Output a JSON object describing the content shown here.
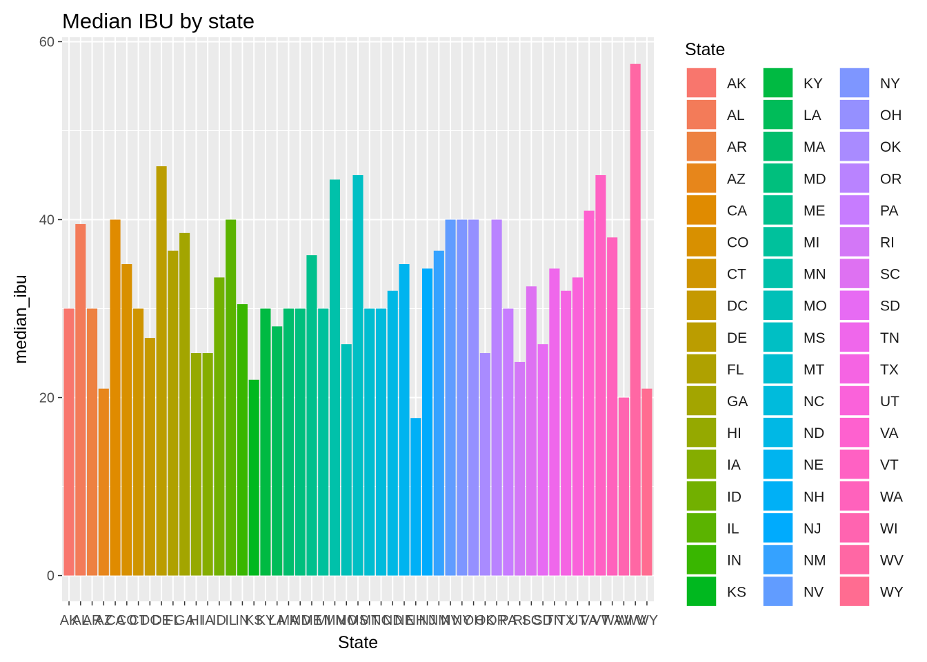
{
  "chart_data": {
    "type": "bar",
    "title": "Median IBU by state",
    "xlabel": "State",
    "ylabel": "median_ibu",
    "ylim": [
      -2.9,
      60.5
    ],
    "yticks": [
      0,
      20,
      40,
      60
    ],
    "legend": {
      "title": "State",
      "placement": "right",
      "columns": 3
    },
    "categories": [
      "AK",
      "AL",
      "AR",
      "AZ",
      "CA",
      "CO",
      "CT",
      "DC",
      "DE",
      "FL",
      "GA",
      "HI",
      "IA",
      "ID",
      "IL",
      "IN",
      "KS",
      "KY",
      "LA",
      "MA",
      "MD",
      "ME",
      "MI",
      "MN",
      "MO",
      "MS",
      "MT",
      "NC",
      "ND",
      "NE",
      "NH",
      "NJ",
      "NM",
      "NV",
      "NY",
      "OH",
      "OK",
      "OR",
      "PA",
      "RI",
      "SC",
      "SD",
      "TN",
      "TX",
      "UT",
      "VA",
      "VT",
      "WA",
      "WI",
      "WV",
      "WY"
    ],
    "values": [
      30,
      39.5,
      30,
      21,
      40,
      35,
      30,
      26.7,
      46,
      36.5,
      38.5,
      25,
      25,
      33.5,
      40,
      30.5,
      22,
      30,
      28,
      30,
      30,
      36,
      30,
      44.5,
      26,
      45,
      30,
      30,
      32,
      35,
      17.7,
      34.5,
      36.5,
      40,
      40,
      40,
      25,
      40,
      30,
      24,
      32.5,
      26,
      34.5,
      32,
      33.5,
      41,
      45,
      38,
      20,
      57.5,
      21
    ],
    "colors": [
      "#F8766D",
      "#F37B59",
      "#ED8141",
      "#E7861B",
      "#E08B00",
      "#D89000",
      "#CF9400",
      "#C59900",
      "#BB9D00",
      "#AFA100",
      "#A3A500",
      "#95A900",
      "#85AD00",
      "#72B000",
      "#5BB300",
      "#39B600",
      "#00B81F",
      "#00BA42",
      "#00BC59",
      "#00BD6C",
      "#00BF7D",
      "#00C08D",
      "#00C19C",
      "#00C1AA",
      "#00C0B8",
      "#00BFC4",
      "#00BDD0",
      "#00BBDC",
      "#00B8E5",
      "#00B4EF",
      "#00B0F6",
      "#00ABFD",
      "#35A2FF",
      "#619CFF",
      "#7E96FF",
      "#9590FF",
      "#A98BFF",
      "#B983FF",
      "#C77CFF",
      "#D377F7",
      "#DE71F2",
      "#E76BF3",
      "#EF67EB",
      "#F564E3",
      "#FA62DA",
      "#FE61CF",
      "#FF61C3",
      "#FF62BC",
      "#FF64B0",
      "#FF67A4",
      "#FF6C91"
    ]
  }
}
